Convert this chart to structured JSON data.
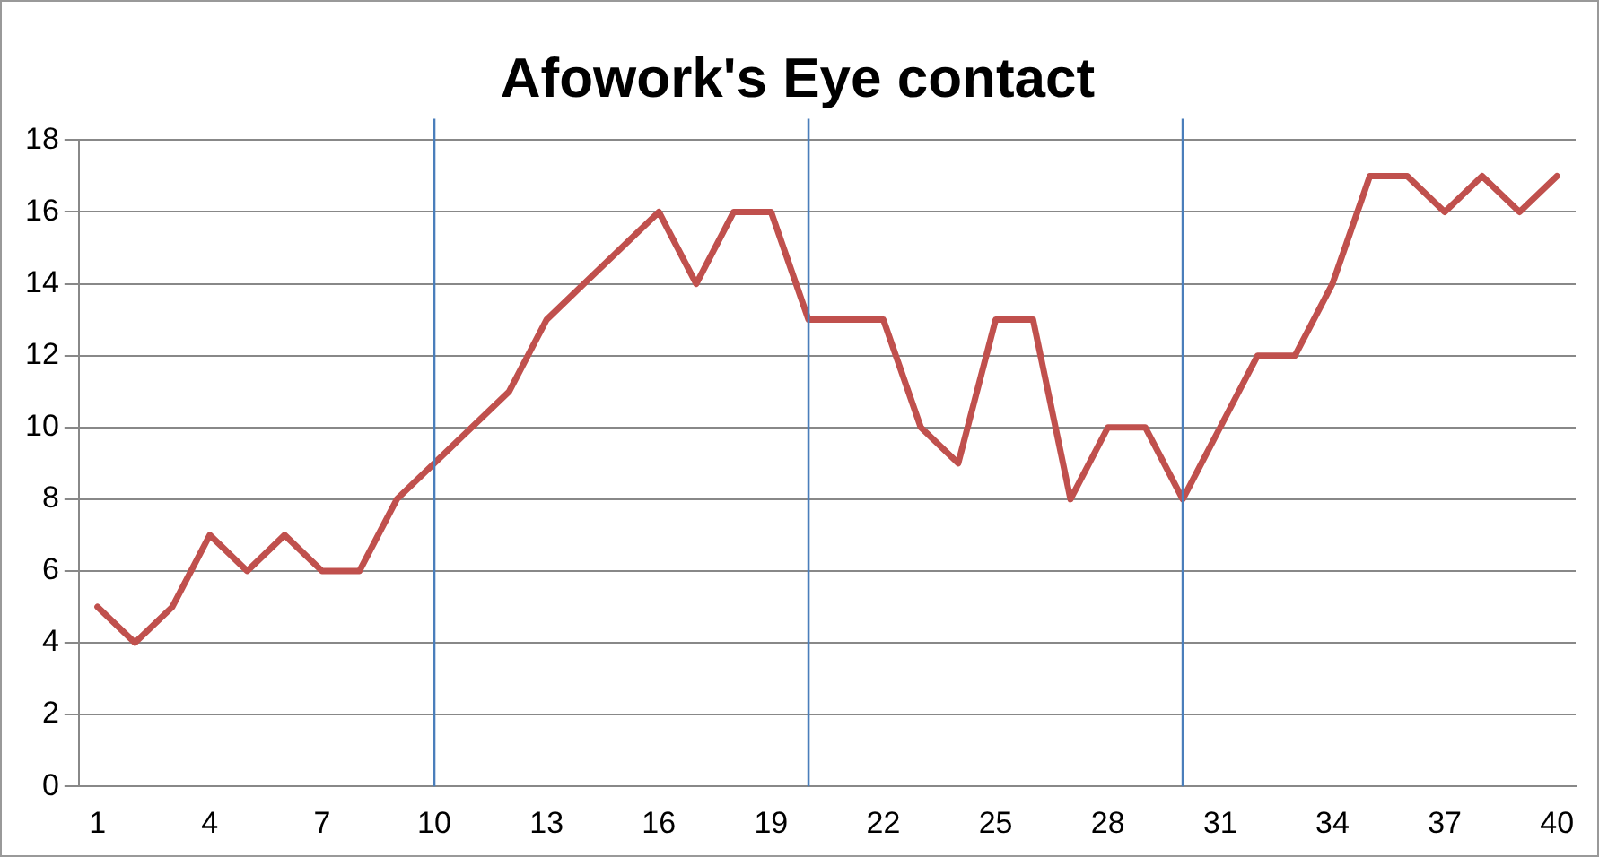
{
  "chart_data": {
    "type": "line",
    "title": "Afowork's Eye contact",
    "x": [
      1,
      2,
      3,
      4,
      5,
      6,
      7,
      8,
      9,
      10,
      11,
      12,
      13,
      14,
      15,
      16,
      17,
      18,
      19,
      20,
      21,
      22,
      23,
      24,
      25,
      26,
      27,
      28,
      29,
      30,
      31,
      32,
      33,
      34,
      35,
      36,
      37,
      38,
      39,
      40
    ],
    "series": [
      {
        "color": "#c0504d",
        "values": [
          5,
          4,
          5,
          7,
          6,
          7,
          6,
          6,
          8,
          9,
          10,
          11,
          13,
          14,
          15,
          16,
          14,
          16,
          16,
          13,
          13,
          13,
          10,
          9,
          13,
          13,
          8,
          10,
          10,
          8,
          10,
          12,
          12,
          14,
          17,
          17,
          16,
          17,
          16,
          17
        ]
      }
    ],
    "xlim": [
      0.5,
      40.5
    ],
    "xticks": [
      1,
      4,
      7,
      10,
      13,
      16,
      19,
      22,
      25,
      28,
      31,
      34,
      37,
      40
    ],
    "ylim": [
      0,
      18
    ],
    "yticks": [
      0,
      2,
      4,
      6,
      8,
      10,
      12,
      14,
      16,
      18
    ],
    "ref_lines": [
      {
        "axis": "x",
        "value": 10,
        "color": "#4a7ebb"
      },
      {
        "axis": "x",
        "value": 20,
        "color": "#4a7ebb"
      },
      {
        "axis": "x",
        "value": 30,
        "color": "#4a7ebb"
      }
    ],
    "grid": "y",
    "legend": false,
    "marker": "none",
    "line_style": "solid"
  }
}
